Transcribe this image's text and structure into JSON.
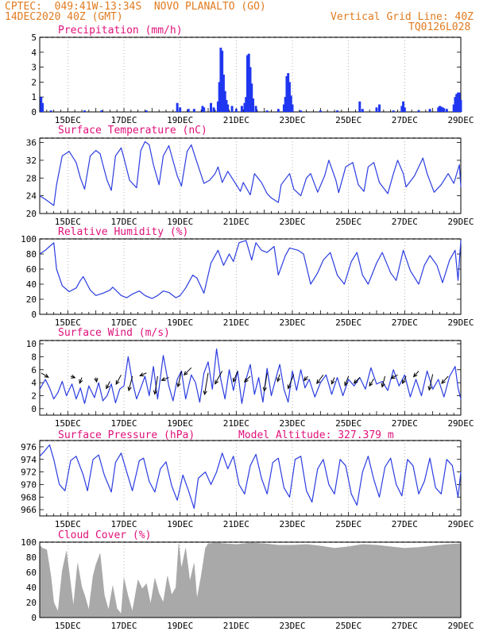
{
  "header": {
    "line1_left": "CPTEC:  049:41W-13:34S  NOVO PLANALTO (GO)",
    "line2_left": "14DEC2020 40Z (GMT)",
    "line2_right": "Vertical Grid Line: 40Z",
    "line3_right": "TQ0126L028"
  },
  "colors": {
    "header": "#e07b20",
    "title": "#e0117a",
    "line": "#2b3de0",
    "bar": "#1f36f0",
    "cloud": "#a9a9a9",
    "arrow": "#000000"
  },
  "x_labels": [
    "15DEC",
    "17DEC",
    "19DEC",
    "21DEC",
    "23DEC",
    "25DEC",
    "27DEC",
    "29DEC"
  ],
  "chart_data": [
    {
      "type": "bar",
      "title": "Precipitation (mm/h)",
      "ylim": [
        0,
        5
      ],
      "yticks": [
        0,
        1,
        2,
        3,
        4,
        5
      ],
      "x_range_days": [
        14,
        29
      ],
      "events": [
        [
          14.05,
          1.0
        ],
        [
          14.1,
          0.6
        ],
        [
          14.4,
          0.1
        ],
        [
          15.6,
          0.1
        ],
        [
          16.2,
          0.1
        ],
        [
          17.8,
          0.1
        ],
        [
          18.9,
          0.6
        ],
        [
          19.0,
          0.3
        ],
        [
          19.3,
          0.2
        ],
        [
          19.5,
          0.2
        ],
        [
          19.8,
          0.4
        ],
        [
          19.85,
          0.3
        ],
        [
          20.1,
          0.6
        ],
        [
          20.2,
          0.3
        ],
        [
          20.35,
          0.7
        ],
        [
          20.4,
          2.0
        ],
        [
          20.45,
          4.3
        ],
        [
          20.5,
          4.1
        ],
        [
          20.55,
          2.5
        ],
        [
          20.6,
          1.4
        ],
        [
          20.65,
          0.8
        ],
        [
          20.7,
          0.5
        ],
        [
          20.85,
          0.4
        ],
        [
          21.0,
          0.2
        ],
        [
          21.2,
          0.4
        ],
        [
          21.3,
          0.6
        ],
        [
          21.35,
          1.0
        ],
        [
          21.4,
          3.8
        ],
        [
          21.45,
          3.9
        ],
        [
          21.5,
          3.0
        ],
        [
          21.55,
          1.9
        ],
        [
          21.6,
          0.9
        ],
        [
          21.7,
          0.4
        ],
        [
          22.1,
          0.1
        ],
        [
          22.5,
          0.2
        ],
        [
          22.7,
          0.5
        ],
        [
          22.75,
          1.0
        ],
        [
          22.8,
          2.4
        ],
        [
          22.85,
          2.6
        ],
        [
          22.9,
          2.0
        ],
        [
          22.95,
          1.1
        ],
        [
          23.0,
          0.5
        ],
        [
          23.3,
          0.1
        ],
        [
          24.0,
          0.1
        ],
        [
          24.6,
          0.1
        ],
        [
          25.4,
          0.7
        ],
        [
          25.5,
          0.2
        ],
        [
          26.0,
          0.3
        ],
        [
          26.1,
          0.5
        ],
        [
          26.6,
          0.1
        ],
        [
          26.9,
          0.4
        ],
        [
          26.95,
          0.7
        ],
        [
          27.0,
          0.3
        ],
        [
          27.5,
          0.1
        ],
        [
          27.9,
          0.2
        ],
        [
          28.2,
          0.3
        ],
        [
          28.25,
          0.4
        ],
        [
          28.3,
          0.35
        ],
        [
          28.35,
          0.3
        ],
        [
          28.4,
          0.25
        ],
        [
          28.5,
          0.2
        ],
        [
          28.75,
          0.5
        ],
        [
          28.8,
          1.0
        ],
        [
          28.85,
          1.2
        ],
        [
          28.9,
          1.3
        ],
        [
          28.95,
          1.3
        ],
        [
          29.0,
          0.8
        ]
      ]
    },
    {
      "type": "line",
      "title": "Surface Temperature (nC)",
      "ylim": [
        20,
        37
      ],
      "yticks": [
        20,
        24,
        28,
        32,
        36
      ],
      "x": [
        14.0,
        14.2,
        14.35,
        14.5,
        14.6,
        14.8,
        15.05,
        15.3,
        15.45,
        15.6,
        15.8,
        16.0,
        16.15,
        16.25,
        16.4,
        16.55,
        16.7,
        16.9,
        17.0,
        17.2,
        17.45,
        17.6,
        17.75,
        17.9,
        18.05,
        18.25,
        18.4,
        18.6,
        18.9,
        19.05,
        19.25,
        19.4,
        19.55,
        19.85,
        20.05,
        20.25,
        20.35,
        20.5,
        20.7,
        20.9,
        21.15,
        21.25,
        21.5,
        21.65,
        21.9,
        22.1,
        22.25,
        22.5,
        22.6,
        22.9,
        23.05,
        23.3,
        23.5,
        23.65,
        23.9,
        24.15,
        24.3,
        24.55,
        24.65,
        24.9,
        25.15,
        25.35,
        25.55,
        25.7,
        25.9,
        26.1,
        26.4,
        26.6,
        26.75,
        26.95,
        27.05,
        27.35,
        27.65,
        27.8,
        28.05,
        28.3,
        28.55,
        28.75,
        28.95,
        29.0
      ],
      "y": [
        24.0,
        23.2,
        22.5,
        21.8,
        26.5,
        33.0,
        34.0,
        31.5,
        28.0,
        25.5,
        33.0,
        34.2,
        33.5,
        31.0,
        27.5,
        25.2,
        33.0,
        34.8,
        32.5,
        27.5,
        25.8,
        34.2,
        36.2,
        35.5,
        31.0,
        26.5,
        33.0,
        35.3,
        28.5,
        26.2,
        34.0,
        35.5,
        32.5,
        26.8,
        27.5,
        29.0,
        30.5,
        27.0,
        29.5,
        27.5,
        25.0,
        27.0,
        24.2,
        29.0,
        27.0,
        24.5,
        23.5,
        22.5,
        26.5,
        29.0,
        25.5,
        24.0,
        28.0,
        29.0,
        24.8,
        28.5,
        32.0,
        27.5,
        24.7,
        30.5,
        31.5,
        26.5,
        25.0,
        30.5,
        31.5,
        27.0,
        24.5,
        29.0,
        32.0,
        29.0,
        26.0,
        28.5,
        32.5,
        29.0,
        24.8,
        26.5,
        29.0,
        26.8,
        31.0,
        26.0
      ]
    },
    {
      "type": "line",
      "title": "Relative Humidity (%)",
      "ylim": [
        0,
        100
      ],
      "yticks": [
        0,
        20,
        40,
        60,
        80,
        100
      ],
      "x": [
        14.0,
        14.2,
        14.35,
        14.5,
        14.6,
        14.8,
        15.05,
        15.3,
        15.45,
        15.55,
        15.8,
        16.0,
        16.25,
        16.5,
        16.6,
        16.9,
        17.1,
        17.3,
        17.55,
        17.75,
        18.0,
        18.2,
        18.4,
        18.6,
        18.85,
        19.0,
        19.2,
        19.45,
        19.6,
        19.85,
        20.1,
        20.35,
        20.55,
        20.75,
        20.9,
        21.1,
        21.35,
        21.55,
        21.7,
        21.9,
        22.1,
        22.35,
        22.5,
        22.75,
        22.9,
        23.2,
        23.4,
        23.65,
        23.9,
        24.1,
        24.35,
        24.6,
        24.85,
        25.1,
        25.3,
        25.5,
        25.7,
        26.0,
        26.2,
        26.5,
        26.7,
        26.95,
        27.2,
        27.5,
        27.7,
        27.9,
        28.15,
        28.35,
        28.6,
        28.8,
        28.9,
        29.0
      ],
      "y": [
        80,
        85,
        90,
        95,
        60,
        38,
        30,
        35,
        45,
        50,
        32,
        25,
        28,
        32,
        36,
        25,
        22,
        27,
        31,
        25,
        21,
        25,
        31,
        29,
        22,
        25,
        35,
        52,
        48,
        28,
        68,
        85,
        65,
        80,
        70,
        95,
        98,
        72,
        95,
        85,
        82,
        90,
        52,
        78,
        88,
        85,
        80,
        40,
        55,
        72,
        82,
        52,
        40,
        70,
        82,
        52,
        40,
        68,
        82,
        55,
        45,
        85,
        58,
        40,
        65,
        78,
        65,
        42,
        72,
        85,
        45,
        98
      ]
    },
    {
      "type": "line",
      "title": "Surface Wind (m/s)",
      "ylim": [
        -1,
        10.5
      ],
      "yticks": [
        0,
        2,
        4,
        6,
        8,
        10
      ],
      "x": [
        14.0,
        14.2,
        14.35,
        14.5,
        14.65,
        14.8,
        14.95,
        15.15,
        15.3,
        15.45,
        15.6,
        15.75,
        15.95,
        16.1,
        16.25,
        16.4,
        16.55,
        16.7,
        16.85,
        17.0,
        17.15,
        17.3,
        17.45,
        17.6,
        17.75,
        17.9,
        18.05,
        18.2,
        18.4,
        18.6,
        18.75,
        18.9,
        19.05,
        19.2,
        19.4,
        19.55,
        19.7,
        19.85,
        20.0,
        20.15,
        20.3,
        20.45,
        20.6,
        20.75,
        20.9,
        21.05,
        21.2,
        21.35,
        21.5,
        21.65,
        21.8,
        21.95,
        22.1,
        22.25,
        22.4,
        22.55,
        22.7,
        22.85,
        23.0,
        23.15,
        23.3,
        23.45,
        23.6,
        23.8,
        24.0,
        24.2,
        24.4,
        24.6,
        24.8,
        25.0,
        25.2,
        25.4,
        25.6,
        25.8,
        26.0,
        26.2,
        26.4,
        26.6,
        26.8,
        27.0,
        27.2,
        27.4,
        27.6,
        27.8,
        28.0,
        28.2,
        28.4,
        28.6,
        28.8,
        28.9,
        29.0
      ],
      "y": [
        3.0,
        4.5,
        3.2,
        1.5,
        2.5,
        4.2,
        2.0,
        3.8,
        1.5,
        3.2,
        0.8,
        3.5,
        1.7,
        4.0,
        1.2,
        2.0,
        3.8,
        0.9,
        3.0,
        3.5,
        8.0,
        4.2,
        1.5,
        3.2,
        5.0,
        2.0,
        6.5,
        1.5,
        8.2,
        3.5,
        1.2,
        4.5,
        5.8,
        1.5,
        5.2,
        4.0,
        1.0,
        5.5,
        7.2,
        3.0,
        9.2,
        4.5,
        1.5,
        6.0,
        2.8,
        5.8,
        0.8,
        4.5,
        6.8,
        2.2,
        4.8,
        1.0,
        6.2,
        2.0,
        4.5,
        6.8,
        3.0,
        1.0,
        5.8,
        2.8,
        6.0,
        3.2,
        4.5,
        1.8,
        4.0,
        5.2,
        2.2,
        4.8,
        2.0,
        4.5,
        3.5,
        4.8,
        3.0,
        6.3,
        3.8,
        4.2,
        2.8,
        6.0,
        3.5,
        5.2,
        1.8,
        4.5,
        2.0,
        5.8,
        3.0,
        4.5,
        1.8,
        5.0,
        6.5,
        3.2,
        1.5
      ],
      "arrows": [
        {
          "x": 14.05,
          "y": 5.5,
          "u": 1.0,
          "v": -0.6
        },
        {
          "x": 15.1,
          "y": 5.0,
          "u": 0.6,
          "v": -0.2
        },
        {
          "x": 15.5,
          "y": 4.8,
          "u": -0.3,
          "v": -0.8
        },
        {
          "x": 16.0,
          "y": 4.8,
          "u": 0.1,
          "v": -0.6
        },
        {
          "x": 16.5,
          "y": 4.2,
          "u": -0.5,
          "v": -1.0
        },
        {
          "x": 16.9,
          "y": 5.2,
          "u": -0.7,
          "v": -1.3
        },
        {
          "x": 17.3,
          "y": 5.0,
          "u": -0.5,
          "v": -2.0
        },
        {
          "x": 17.8,
          "y": 5.5,
          "u": -0.9,
          "v": -0.4
        },
        {
          "x": 18.2,
          "y": 5.0,
          "u": -0.4,
          "v": -2.5
        },
        {
          "x": 18.6,
          "y": 4.8,
          "u": -1.0,
          "v": -0.4
        },
        {
          "x": 19.05,
          "y": 5.8,
          "u": -0.5,
          "v": -2.2
        },
        {
          "x": 19.4,
          "y": 6.3,
          "u": -1.0,
          "v": -1.0
        },
        {
          "x": 20.0,
          "y": 5.5,
          "u": -0.5,
          "v": -3.0
        },
        {
          "x": 20.5,
          "y": 5.8,
          "u": -1.0,
          "v": -1.8
        },
        {
          "x": 21.05,
          "y": 5.8,
          "u": -0.6,
          "v": -1.5
        },
        {
          "x": 21.5,
          "y": 5.0,
          "u": -0.8,
          "v": -0.8
        },
        {
          "x": 22.1,
          "y": 5.5,
          "u": -0.4,
          "v": -2.5
        },
        {
          "x": 22.55,
          "y": 5.3,
          "u": -0.3,
          "v": -1.0
        },
        {
          "x": 23.05,
          "y": 5.3,
          "u": -0.8,
          "v": -2.0
        },
        {
          "x": 23.55,
          "y": 5.0,
          "u": -0.5,
          "v": -0.6
        },
        {
          "x": 24.1,
          "y": 5.2,
          "u": -0.9,
          "v": -1.2
        },
        {
          "x": 24.5,
          "y": 4.8,
          "u": -0.4,
          "v": -0.9
        },
        {
          "x": 25.0,
          "y": 5.0,
          "u": -0.5,
          "v": -1.3
        },
        {
          "x": 25.4,
          "y": 4.8,
          "u": -0.8,
          "v": -0.8
        },
        {
          "x": 25.9,
          "y": 4.6,
          "u": -0.6,
          "v": -1.0
        },
        {
          "x": 26.3,
          "y": 5.0,
          "u": -0.4,
          "v": -1.5
        },
        {
          "x": 26.75,
          "y": 5.2,
          "u": -0.9,
          "v": -0.5
        },
        {
          "x": 27.05,
          "y": 5.0,
          "u": -0.5,
          "v": -1.0
        },
        {
          "x": 27.5,
          "y": 5.8,
          "u": -0.7,
          "v": -0.8
        },
        {
          "x": 28.0,
          "y": 5.3,
          "u": -0.5,
          "v": -2.2
        },
        {
          "x": 28.55,
          "y": 5.0,
          "u": -0.9,
          "v": -1.0
        }
      ]
    },
    {
      "type": "line",
      "title": "Surface Pressure (hPa)",
      "annotation": "Model Altitude: 327.379 m",
      "ylim": [
        965,
        977
      ],
      "yticks": [
        966,
        968,
        970,
        972,
        974,
        976
      ],
      "x": [
        14.0,
        14.15,
        14.35,
        14.5,
        14.7,
        14.9,
        15.1,
        15.3,
        15.55,
        15.7,
        15.9,
        16.1,
        16.3,
        16.55,
        16.7,
        16.9,
        17.1,
        17.3,
        17.55,
        17.7,
        17.9,
        18.1,
        18.3,
        18.5,
        18.7,
        18.9,
        19.1,
        19.3,
        19.5,
        19.65,
        19.9,
        20.1,
        20.3,
        20.5,
        20.7,
        20.9,
        21.1,
        21.3,
        21.5,
        21.7,
        21.9,
        22.1,
        22.3,
        22.5,
        22.7,
        22.9,
        23.1,
        23.3,
        23.5,
        23.7,
        23.9,
        24.1,
        24.3,
        24.5,
        24.7,
        24.9,
        25.1,
        25.3,
        25.5,
        25.7,
        25.9,
        26.1,
        26.3,
        26.5,
        26.7,
        26.9,
        27.1,
        27.3,
        27.5,
        27.7,
        27.9,
        28.1,
        28.3,
        28.5,
        28.7,
        28.9,
        29.0
      ],
      "y": [
        974.5,
        975.2,
        976.3,
        974.0,
        970.0,
        969.0,
        973.8,
        974.5,
        971.5,
        969.0,
        974.0,
        974.7,
        971.5,
        968.8,
        973.5,
        975.0,
        972.0,
        969.0,
        973.8,
        974.2,
        970.5,
        968.8,
        972.5,
        973.6,
        969.8,
        967.5,
        971.5,
        969.0,
        966.2,
        971.0,
        972.0,
        970.0,
        972.0,
        975.0,
        972.5,
        974.5,
        970.0,
        968.5,
        973.0,
        974.8,
        971.0,
        968.5,
        973.5,
        974.2,
        969.5,
        968.0,
        974.0,
        974.5,
        969.0,
        967.2,
        972.5,
        974.0,
        970.0,
        968.5,
        974.0,
        973.0,
        968.5,
        966.7,
        972.0,
        974.5,
        970.8,
        968.0,
        972.8,
        974.2,
        970.0,
        968.2,
        974.0,
        973.0,
        968.5,
        970.5,
        974.2,
        969.5,
        968.5,
        974.0,
        973.0,
        968.0,
        972.0
      ]
    },
    {
      "type": "area",
      "title": "Cloud Cover (%)",
      "ylim": [
        0,
        100
      ],
      "yticks": [
        0,
        20,
        40,
        60,
        80,
        100
      ],
      "x": [
        14.0,
        14.1,
        14.25,
        14.4,
        14.5,
        14.65,
        14.8,
        14.95,
        15.05,
        15.2,
        15.35,
        15.5,
        15.6,
        15.75,
        15.9,
        16.0,
        16.15,
        16.3,
        16.45,
        16.6,
        16.75,
        16.9,
        17.0,
        17.15,
        17.3,
        17.5,
        17.65,
        17.8,
        17.95,
        18.1,
        18.25,
        18.4,
        18.55,
        18.7,
        18.85,
        18.95,
        19.05,
        19.2,
        19.35,
        19.5,
        19.6,
        19.75,
        19.9,
        20.0,
        20.3,
        20.6,
        21.0,
        21.5,
        22.0,
        22.5,
        23.0,
        23.5,
        24.0,
        24.5,
        25.0,
        25.5,
        26.0,
        26.5,
        27.0,
        27.5,
        28.0,
        28.5,
        29.0
      ],
      "y": [
        96,
        92,
        90,
        55,
        20,
        8,
        62,
        88,
        60,
        15,
        72,
        40,
        30,
        10,
        55,
        70,
        85,
        30,
        10,
        42,
        12,
        5,
        52,
        28,
        8,
        50,
        38,
        45,
        18,
        52,
        32,
        20,
        55,
        30,
        40,
        98,
        65,
        92,
        48,
        72,
        25,
        55,
        92,
        98,
        99,
        98,
        97,
        99,
        98,
        96,
        96,
        97,
        95,
        92,
        94,
        97,
        96,
        94,
        92,
        93,
        95,
        97,
        98
      ]
    }
  ]
}
